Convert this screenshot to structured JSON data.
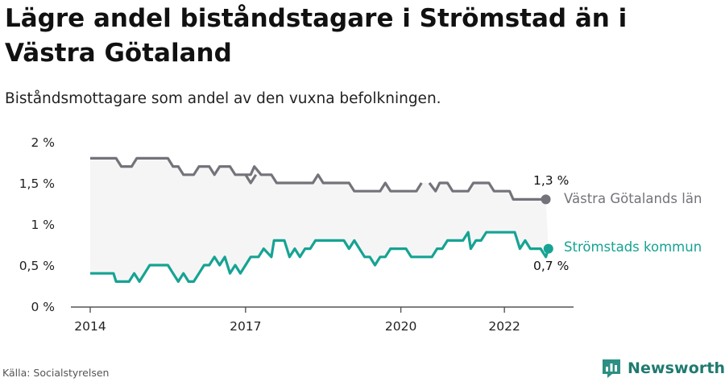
{
  "title": "Lägre andel biståndstagare i Strömstad än i Västra Götaland",
  "subtitle": "Biståndsmottagare som andel av den vuxna befolkningen.",
  "source": "Källa: Socialstyrelsen",
  "brand": "Newsworthy",
  "colors": {
    "vg": "#74737a",
    "st": "#16a393",
    "band": "#f5f5f6",
    "axis": "#555555",
    "brand": "#1f7a6f"
  },
  "chart_data": {
    "type": "line",
    "title": "Lägre andel biståndstagare i Strömstad än i Västra Götaland",
    "subtitle": "Biståndsmottagare som andel av den vuxna befolkningen.",
    "xlabel": "",
    "ylabel": "",
    "xlim": [
      2014.0,
      2022.9
    ],
    "ylim": [
      0,
      2
    ],
    "y_ticks": [
      0,
      0.5,
      1,
      1.5,
      2
    ],
    "y_tick_labels": [
      "0 %",
      "0,5 %",
      "1 %",
      "1,5 %",
      "2 %"
    ],
    "x_ticks": [
      2014,
      2017,
      2020,
      2022
    ],
    "x_tick_labels": [
      "2014",
      "2017",
      "2020",
      "2022"
    ],
    "grid": false,
    "legend": "direct labels at line ends (right)",
    "series": [
      {
        "name": "Västra Götalands län",
        "end_label": "1,3 %",
        "points": [
          [
            2014.0,
            1.8
          ],
          [
            2014.1,
            1.8
          ],
          [
            2014.2,
            1.8
          ],
          [
            2014.3,
            1.8
          ],
          [
            2014.4,
            1.8
          ],
          [
            2014.5,
            1.8
          ],
          [
            2014.6,
            1.7
          ],
          [
            2014.8,
            1.7
          ],
          [
            2014.9,
            1.8
          ],
          [
            2015.0,
            1.8
          ],
          [
            2015.2,
            1.8
          ],
          [
            2015.4,
            1.8
          ],
          [
            2015.5,
            1.8
          ],
          [
            2015.6,
            1.7
          ],
          [
            2015.7,
            1.7
          ],
          [
            2015.8,
            1.6
          ],
          [
            2016.0,
            1.6
          ],
          [
            2016.1,
            1.7
          ],
          [
            2016.2,
            1.7
          ],
          [
            2016.3,
            1.7
          ],
          [
            2016.4,
            1.6
          ],
          [
            2016.5,
            1.7
          ],
          [
            2016.7,
            1.7
          ],
          [
            2016.8,
            1.6
          ],
          [
            2016.9,
            1.6
          ],
          [
            2017.0,
            1.6
          ],
          [
            2017.1,
            1.5
          ],
          [
            2017.2,
            1.6
          ],
          null,
          [
            2016.95,
            1.6
          ],
          [
            2017.1,
            1.6
          ],
          [
            2017.17,
            1.7
          ],
          [
            2017.3,
            1.6
          ],
          [
            2017.5,
            1.6
          ],
          [
            2017.6,
            1.5
          ],
          [
            2017.8,
            1.5
          ],
          [
            2018.0,
            1.5
          ],
          [
            2018.2,
            1.5
          ],
          [
            2018.3,
            1.5
          ],
          [
            2018.4,
            1.6
          ],
          [
            2018.5,
            1.5
          ],
          [
            2018.7,
            1.5
          ],
          [
            2018.9,
            1.5
          ],
          [
            2019.0,
            1.5
          ],
          [
            2019.1,
            1.4
          ],
          [
            2019.3,
            1.4
          ],
          [
            2019.5,
            1.4
          ],
          [
            2019.6,
            1.4
          ],
          [
            2019.7,
            1.5
          ],
          [
            2019.8,
            1.4
          ],
          [
            2020.0,
            1.4
          ],
          [
            2020.2,
            1.4
          ],
          [
            2020.3,
            1.4
          ],
          [
            2020.4,
            1.5
          ],
          null,
          [
            2020.55,
            1.5
          ],
          [
            2020.67,
            1.4
          ],
          [
            2020.75,
            1.5
          ],
          [
            2020.9,
            1.5
          ],
          [
            2021.0,
            1.4
          ],
          [
            2021.2,
            1.4
          ],
          [
            2021.3,
            1.4
          ],
          [
            2021.4,
            1.5
          ],
          [
            2021.5,
            1.5
          ],
          [
            2021.7,
            1.5
          ],
          [
            2021.8,
            1.4
          ],
          [
            2022.0,
            1.4
          ],
          [
            2022.1,
            1.4
          ],
          [
            2022.17,
            1.3
          ],
          [
            2022.3,
            1.3
          ],
          [
            2022.5,
            1.3
          ],
          [
            2022.6,
            1.3
          ],
          [
            2022.8,
            1.3
          ]
        ]
      },
      {
        "name": "Strömstads kommun",
        "end_label": "0,7 %",
        "points": [
          [
            2014.0,
            0.4
          ],
          [
            2014.1,
            0.4
          ],
          [
            2014.2,
            0.4
          ],
          [
            2014.35,
            0.4
          ],
          [
            2014.45,
            0.4
          ],
          [
            2014.5,
            0.3
          ],
          [
            2014.6,
            0.3
          ],
          [
            2014.75,
            0.3
          ],
          [
            2014.85,
            0.4
          ],
          [
            2014.95,
            0.3
          ],
          [
            2015.05,
            0.4
          ],
          [
            2015.15,
            0.5
          ],
          [
            2015.3,
            0.5
          ],
          [
            2015.4,
            0.5
          ],
          [
            2015.5,
            0.5
          ],
          [
            2015.6,
            0.4
          ],
          [
            2015.7,
            0.3
          ],
          [
            2015.8,
            0.4
          ],
          [
            2015.9,
            0.3
          ],
          [
            2016.0,
            0.3
          ],
          [
            2016.1,
            0.4
          ],
          [
            2016.2,
            0.5
          ],
          [
            2016.3,
            0.5
          ],
          [
            2016.4,
            0.6
          ],
          [
            2016.5,
            0.5
          ],
          [
            2016.6,
            0.6
          ],
          [
            2016.7,
            0.4
          ],
          [
            2016.8,
            0.5
          ],
          [
            2016.9,
            0.4
          ],
          [
            2017.0,
            0.5
          ],
          [
            2017.1,
            0.6
          ],
          [
            2017.25,
            0.6
          ],
          [
            2017.35,
            0.7
          ],
          [
            2017.5,
            0.6
          ],
          [
            2017.55,
            0.8
          ],
          [
            2017.7,
            0.8
          ],
          [
            2017.75,
            0.8
          ],
          [
            2017.85,
            0.6
          ],
          [
            2017.95,
            0.7
          ],
          [
            2018.05,
            0.6
          ],
          [
            2018.15,
            0.7
          ],
          [
            2018.25,
            0.7
          ],
          [
            2018.35,
            0.8
          ],
          [
            2018.5,
            0.8
          ],
          [
            2018.6,
            0.8
          ],
          [
            2018.75,
            0.8
          ],
          [
            2018.9,
            0.8
          ],
          [
            2019.0,
            0.7
          ],
          [
            2019.1,
            0.8
          ],
          [
            2019.2,
            0.7
          ],
          [
            2019.3,
            0.6
          ],
          [
            2019.4,
            0.6
          ],
          [
            2019.5,
            0.5
          ],
          [
            2019.6,
            0.6
          ],
          [
            2019.7,
            0.6
          ],
          [
            2019.8,
            0.7
          ],
          [
            2019.9,
            0.7
          ],
          [
            2020.0,
            0.7
          ],
          [
            2020.1,
            0.7
          ],
          [
            2020.2,
            0.6
          ],
          [
            2020.3,
            0.6
          ],
          [
            2020.5,
            0.6
          ],
          [
            2020.6,
            0.6
          ],
          [
            2020.7,
            0.7
          ],
          [
            2020.8,
            0.7
          ],
          [
            2020.9,
            0.8
          ],
          [
            2021.0,
            0.8
          ],
          [
            2021.1,
            0.8
          ],
          [
            2021.2,
            0.8
          ],
          [
            2021.3,
            0.9
          ],
          [
            2021.35,
            0.7
          ],
          [
            2021.45,
            0.8
          ],
          [
            2021.55,
            0.8
          ],
          [
            2021.65,
            0.9
          ],
          [
            2021.8,
            0.9
          ],
          [
            2021.9,
            0.9
          ],
          [
            2022.0,
            0.9
          ],
          [
            2022.1,
            0.9
          ],
          [
            2022.2,
            0.9
          ],
          [
            2022.3,
            0.7
          ],
          [
            2022.4,
            0.8
          ],
          [
            2022.5,
            0.7
          ],
          [
            2022.6,
            0.7
          ],
          [
            2022.7,
            0.7
          ],
          [
            2022.8,
            0.6
          ],
          [
            2022.85,
            0.7
          ]
        ]
      }
    ]
  }
}
